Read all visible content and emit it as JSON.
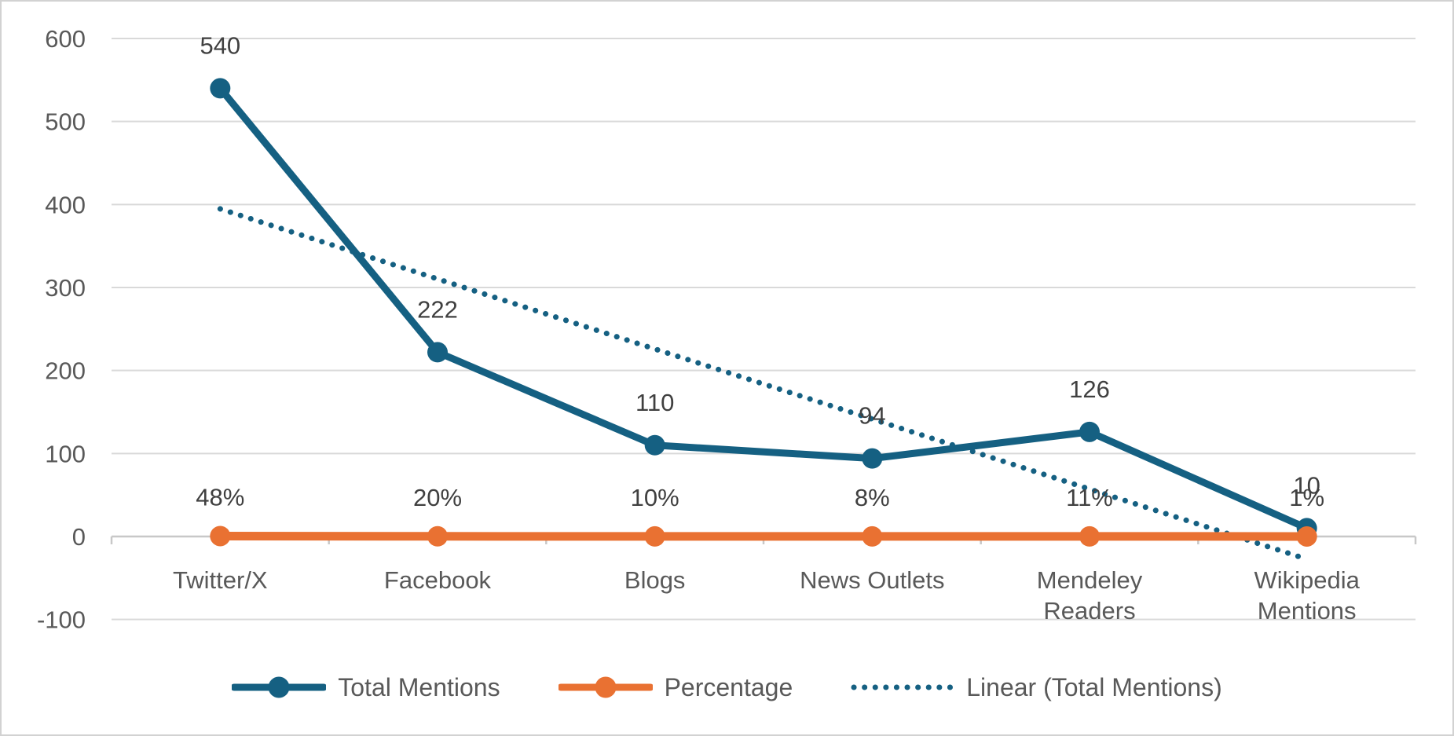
{
  "chart_data": {
    "type": "line",
    "title": "",
    "xlabel": "",
    "ylabel": "",
    "categories": [
      "Twitter/X",
      "Facebook",
      "Blogs",
      "News Outlets",
      "Mendeley Readers",
      "Wikipedia Mentions"
    ],
    "series": [
      {
        "name": "Total Mentions",
        "values": [
          540,
          222,
          110,
          94,
          126,
          10
        ],
        "labels": [
          "540",
          "222",
          "110",
          "94",
          "126",
          "10"
        ],
        "color": "#156082",
        "marker": "circle",
        "line_style": "solid"
      },
      {
        "name": "Percentage",
        "values": [
          0.48,
          0.2,
          0.1,
          0.08,
          0.11,
          0.01
        ],
        "labels": [
          "48%",
          "20%",
          "10%",
          "8%",
          "11%",
          "1%"
        ],
        "color": "#E97132",
        "marker": "circle",
        "line_style": "solid"
      }
    ],
    "trendline": {
      "name": "Linear (Total Mentions)",
      "based_on": "Total Mentions",
      "start_value": 394.7,
      "end_value": -27.3,
      "color": "#156082",
      "line_style": "dotted"
    },
    "y_axis": {
      "min": -100,
      "max": 600,
      "step": 100,
      "ticks": [
        600,
        500,
        400,
        300,
        200,
        100,
        0,
        -100
      ]
    },
    "grid": true,
    "legend_position": "bottom",
    "legend": [
      {
        "label": "Total Mentions",
        "swatch": "line-circle",
        "color": "#156082"
      },
      {
        "label": "Percentage",
        "swatch": "line-circle",
        "color": "#E97132"
      },
      {
        "label": "Linear (Total Mentions)",
        "swatch": "dotted-line",
        "color": "#156082"
      }
    ]
  },
  "style": {
    "background": "#FFFFFF",
    "frame_border": "#D2D2D2",
    "gridline_color": "#D9D9D9",
    "axis_line_color": "#C8C8C8",
    "tick_label_color": "#595959",
    "category_label_color": "#595959",
    "data_label_color": "#404040",
    "legend_text_color": "#595959",
    "accent_blue": "#156082",
    "accent_orange": "#E97132"
  }
}
